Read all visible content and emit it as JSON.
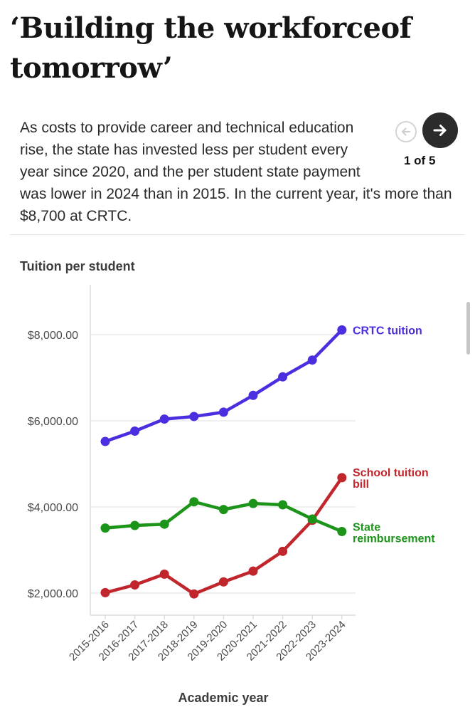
{
  "headline": "‘Building the workforceof tomorrow’",
  "description": "As costs to provide career and technical education rise, the state has invested less per student every year since 2020, and the per student state payment was lower in 2024 than in 2015. In the current year, it's more than $8,700 at CRTC.",
  "slideshow": {
    "counter": "1 of 5",
    "prev_icon": "arrow-left-icon",
    "next_icon": "arrow-right-icon"
  },
  "colors": {
    "crtc": "#4b2ee0",
    "school": "#c0262c",
    "state": "#1c9419",
    "grid": "#eaeaea",
    "axis": "#dcdcdc"
  },
  "chart_data": {
    "type": "line",
    "ylabel": "Tuition per student",
    "xlabel": "Academic year",
    "categories": [
      "2015-2016",
      "2016-2017",
      "2017-2018",
      "2018-2019",
      "2019-2020",
      "2020-2021",
      "2021-2022",
      "2022-2023",
      "2023-2024"
    ],
    "y_ticks": [
      2000,
      4000,
      6000,
      8000
    ],
    "y_tick_labels": [
      "$2,000.00",
      "$4,000.00",
      "$6,000.00",
      "$8,000.00"
    ],
    "ylim": [
      1550,
      9100
    ],
    "grid": true,
    "series": [
      {
        "name": "CRTC tuition",
        "label_lines": [
          "CRTC tuition"
        ],
        "color_key": "crtc",
        "values": [
          5520,
          5760,
          6040,
          6100,
          6200,
          6590,
          7020,
          7410,
          8110
        ]
      },
      {
        "name": "School tuition bill",
        "label_lines": [
          "School tuition",
          "bill"
        ],
        "color_key": "school",
        "values": [
          2010,
          2190,
          2440,
          1980,
          2260,
          2510,
          2970,
          3690,
          4680
        ]
      },
      {
        "name": "State reimbursement",
        "label_lines": [
          "State",
          "reimbursement"
        ],
        "color_key": "state",
        "values": [
          3510,
          3570,
          3600,
          4120,
          3940,
          4080,
          4050,
          3720,
          3430
        ]
      }
    ]
  }
}
